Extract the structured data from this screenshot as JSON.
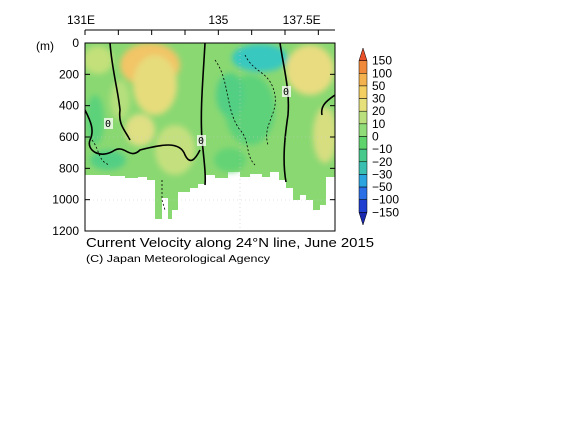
{
  "chart_data": {
    "type": "heatmap",
    "title": "Current Velocity along 24°N line, June 2015",
    "credit": "(C) Japan Meteorological Agency",
    "x_axis": {
      "range": [
        131.0,
        138.5
      ],
      "ticks": [
        {
          "value": 131.0,
          "label": "131E"
        },
        {
          "value": 135.0,
          "label": "135"
        },
        {
          "value": 137.5,
          "label": "137.5E"
        }
      ]
    },
    "y_axis": {
      "unit_label": "(m)",
      "range": [
        0,
        1200
      ],
      "inverted": true,
      "ticks": [
        0,
        200,
        400,
        600,
        800,
        1000,
        1200
      ]
    },
    "colorbar": {
      "levels": [
        "150",
        "100",
        "50",
        "30",
        "20",
        "10",
        "0",
        "−10",
        "−20",
        "−30",
        "−50",
        "−100",
        "−150"
      ],
      "colors": [
        "#e8502a",
        "#f08a3a",
        "#f4b24e",
        "#f3cf62",
        "#e6e07a",
        "#b9e07c",
        "#8fdc78",
        "#5fd36c",
        "#46c98a",
        "#3bbfb0",
        "#2ca4e0",
        "#2a6fe6",
        "#1f3fd0",
        "#1a28b0"
      ]
    },
    "contour_labels": [
      "0",
      "0",
      "0"
    ],
    "grid": true
  }
}
